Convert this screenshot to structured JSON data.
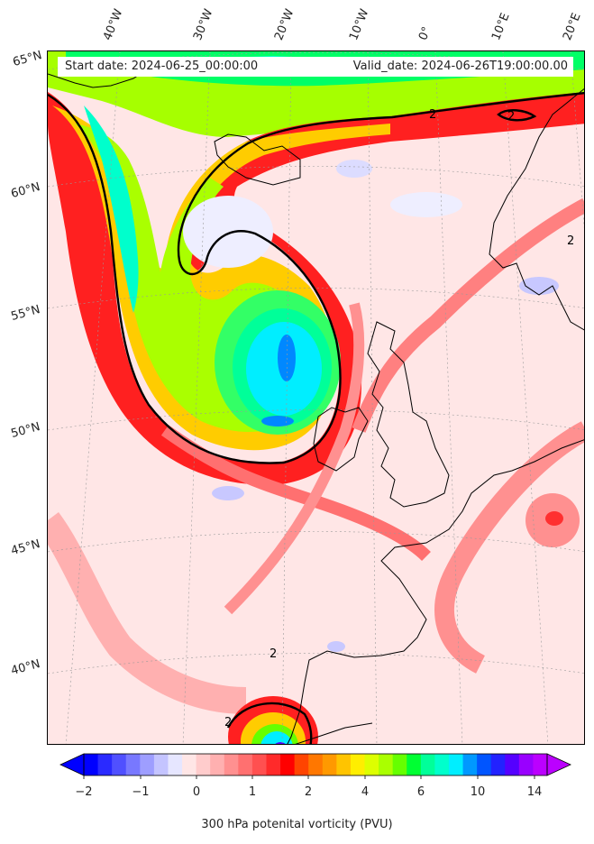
{
  "header": {
    "start_date": "Start date: 2024-06-25_00:00:00",
    "valid_date": "Valid_date: 2024-06-26T19:00:00.00"
  },
  "axes": {
    "longitude_labels": [
      "40°W",
      "30°W",
      "20°W",
      "10°W",
      "0°",
      "10°E",
      "20°E"
    ],
    "latitude_labels": [
      "65°N",
      "60°N",
      "55°N",
      "50°N",
      "45°N",
      "40°N"
    ]
  },
  "contour_labels": [
    "2",
    "2",
    "2",
    "2",
    "2"
  ],
  "colorbar": {
    "title": "300 hPa potenital vorticity (PVU)",
    "tick_labels": [
      "−2",
      "−1",
      "0",
      "1",
      "2",
      "4",
      "6",
      "10",
      "14"
    ],
    "colors": [
      "#0000ff",
      "#2a2aff",
      "#5050ff",
      "#7878ff",
      "#9e9eff",
      "#c4c4ff",
      "#e6e6ff",
      "#ffe6e6",
      "#ffcccc",
      "#ffb0b0",
      "#ff9090",
      "#ff7070",
      "#ff5050",
      "#ff2a2a",
      "#ff0000",
      "#ff4400",
      "#ff7700",
      "#ff9900",
      "#ffc400",
      "#ffee00",
      "#ddff00",
      "#aaff00",
      "#66ff00",
      "#00ff33",
      "#00ff99",
      "#00ffcc",
      "#00eeff",
      "#0099ff",
      "#0055ff",
      "#2222ff",
      "#5500ff",
      "#9900ff",
      "#bb00ff"
    ]
  }
}
